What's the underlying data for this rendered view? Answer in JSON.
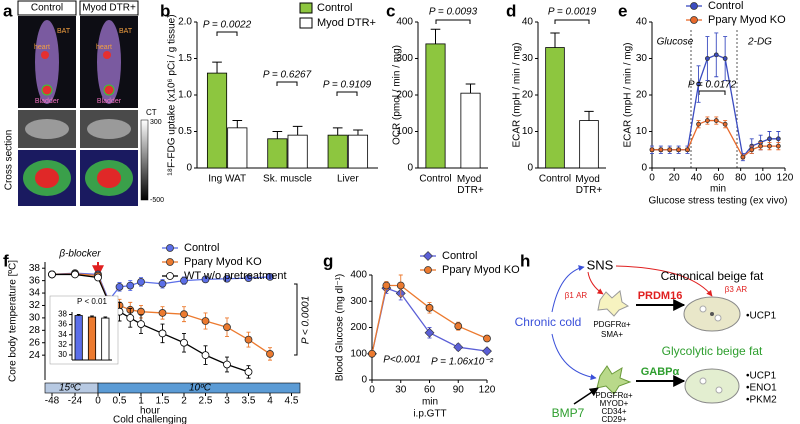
{
  "image_panel": {
    "panel": "a",
    "columns": [
      "Control",
      "Myod DTR+"
    ],
    "labels": {
      "heart": "heart",
      "bat": "BAT",
      "bladder": "Bladder"
    },
    "colorbar_title": "CT",
    "colorbar_ticks": [
      300,
      -500
    ],
    "row_label": "Cross section"
  },
  "chart_data": [
    {
      "type": "bar",
      "panel": "b",
      "y_label": "¹⁸F-FDG uptake (x10⁶ pCi / g tissue)",
      "categories": [
        "Ing WAT",
        "Sk. muscle",
        "Liver"
      ],
      "series": [
        {
          "name": "Control",
          "color": "#8dc63f",
          "values": [
            1.3,
            0.4,
            0.45
          ],
          "errors": [
            0.15,
            0.1,
            0.1
          ]
        },
        {
          "name": "Myod DTR+",
          "color": "#ffffff",
          "values": [
            0.55,
            0.45,
            0.45
          ],
          "errors": [
            0.1,
            0.12,
            0.07
          ]
        }
      ],
      "ylim": [
        0,
        2
      ],
      "yticks": [
        0,
        0.5,
        {
          "value": 1,
          "label": "1.0"
        },
        1.5,
        {
          "value": 2,
          "label": "2.0"
        }
      ],
      "annotations": [
        "P = 0.0022",
        "P = 0.6267",
        "P = 0.9109"
      ],
      "legend": "top-right"
    },
    {
      "type": "bar",
      "panel": "c",
      "y_label": "OCR (pmol / min / mg)",
      "categories": [
        "Control",
        "Myod DTR+"
      ],
      "values": [
        340,
        205
      ],
      "errors": [
        40,
        25
      ],
      "colors": [
        "#8dc63f",
        "#ffffff"
      ],
      "ylim": [
        0,
        400
      ],
      "yticks": [
        0,
        100,
        200,
        300,
        400
      ],
      "annotations": [
        "P = 0.0093"
      ]
    },
    {
      "type": "bar",
      "panel": "d",
      "y_label": "ECAR (mpH / min / mg)",
      "categories": [
        "Control",
        "Myod DTR+"
      ],
      "values": [
        33,
        13
      ],
      "errors": [
        4,
        2.5
      ],
      "colors": [
        "#8dc63f",
        "#ffffff"
      ],
      "ylim": [
        0,
        40
      ],
      "yticks": [
        0,
        10,
        20,
        30,
        40
      ],
      "annotations": [
        "P = 0.0019"
      ]
    },
    {
      "type": "line",
      "panel": "e",
      "y_label": "ECAR (mpH / min / mg)",
      "x_label": "min",
      "subtitle": "Glucose stress testing (ex vivo)",
      "x": [
        0,
        8,
        16,
        24,
        32,
        42,
        50,
        58,
        66,
        82,
        90,
        98,
        106,
        114
      ],
      "series": [
        {
          "name": "Control",
          "color": "#3b4cc0",
          "marker": "circle",
          "values": [
            5,
            5,
            5,
            5,
            5,
            23,
            30,
            31,
            30,
            3,
            6,
            7,
            8,
            8
          ],
          "errors": [
            1,
            1,
            1,
            1,
            1,
            5,
            6,
            6,
            6,
            1,
            2,
            2,
            2,
            2
          ]
        },
        {
          "name": "Pparγ Myod KO",
          "color": "#e8692b",
          "marker": "circle",
          "values": [
            5,
            5,
            5,
            5,
            5,
            12,
            13,
            13,
            12,
            3,
            5,
            6,
            6,
            6
          ],
          "errors": [
            0.5,
            0.5,
            0.5,
            0.5,
            0.5,
            1,
            1,
            1,
            1,
            0.5,
            1,
            1,
            1,
            1
          ]
        }
      ],
      "xlim": [
        0,
        120
      ],
      "xticks": [
        0,
        20,
        40,
        60,
        80,
        100,
        120
      ],
      "ylim": [
        0,
        40
      ],
      "yticks": [
        0,
        10,
        20,
        30,
        40
      ],
      "annotations": [
        "Glucose",
        "2-DG",
        "P = 0.0172"
      ],
      "legend": "top"
    },
    {
      "type": "line",
      "panel": "f",
      "y_label": "Core body temperature [ºC]",
      "x_label": "hour",
      "subtitle": "Cold challenging",
      "x": [
        -48,
        -24,
        0,
        0.25,
        0.5,
        0.75,
        1,
        1.5,
        2,
        2.5,
        3,
        3.5,
        4
      ],
      "series": [
        {
          "name": "Control",
          "color": "#5b6ee8",
          "marker": "circle",
          "values": [
            37,
            37.2,
            37,
            32.8,
            35,
            35.2,
            35.8,
            35.5,
            36,
            36.2,
            36.3,
            36.4,
            36.6
          ],
          "errors": [
            0.3,
            0.3,
            0.3,
            0.5,
            0.7,
            0.8,
            0.7,
            0.7,
            0.6,
            0.5,
            0.4,
            0.4,
            0.3
          ]
        },
        {
          "name": "Pparγ Myod KO",
          "color": "#ec7a2f",
          "marker": "circle",
          "values": [
            37,
            37.1,
            36.8,
            32.5,
            32,
            31.3,
            31,
            30.8,
            30.6,
            29.5,
            28.5,
            26.5,
            24.2
          ],
          "errors": [
            0.3,
            0.3,
            0.3,
            1,
            1,
            1.2,
            1,
            1,
            1.2,
            1.3,
            1.5,
            1.2,
            1
          ]
        },
        {
          "name": "WT w/o pretreatment",
          "color": "#ffffff",
          "marker": "circle",
          "values": [
            37,
            37,
            36.5,
            32.5,
            31,
            30,
            29,
            27.5,
            26,
            24,
            22.5,
            21.3,
            null
          ],
          "errors": [
            0.3,
            0.3,
            0.3,
            1,
            1.5,
            1.5,
            1.5,
            1.5,
            1.5,
            1.5,
            1.2,
            1,
            null
          ]
        }
      ],
      "xlim": [
        -48,
        4.5
      ],
      "xticks": [
        -48,
        -24,
        0,
        0.5,
        1,
        1.5,
        2,
        2.5,
        3,
        3.5,
        4,
        4.5
      ],
      "ylim": [
        20,
        39
      ],
      "yticks": [
        24,
        26,
        28,
        30,
        32,
        34,
        36,
        38
      ],
      "annotations": [
        "β-blocker",
        "P < 0.0001",
        "15ºC",
        "10ºC"
      ],
      "legend": "top-right"
    },
    {
      "type": "bar",
      "values": [
        37.8,
        37.5,
        37.3
      ],
      "errors": [
        0.2,
        0.2,
        0.2
      ],
      "colors": [
        "#5b6ee8",
        "#ec7a2f",
        "#ffffff"
      ],
      "ylim": [
        29,
        38.5
      ],
      "yticks": [
        30,
        32,
        34,
        36,
        38
      ],
      "annotations": [
        "P < 0.01"
      ]
    },
    {
      "type": "line",
      "panel": "g",
      "y_label": "Blood Glucose (mg dl⁻¹)",
      "x_label": "min",
      "subtitle": "i.p.GTT",
      "x": [
        0,
        15,
        30,
        60,
        90,
        120
      ],
      "series": [
        {
          "name": "Control",
          "color": "#5b5fd6",
          "marker": "diamond",
          "values": [
            100,
            350,
            330,
            180,
            125,
            110
          ],
          "errors": [
            8,
            20,
            25,
            20,
            12,
            8
          ]
        },
        {
          "name": "Pparγ Myod KO",
          "color": "#ec7a2f",
          "marker": "circle",
          "values": [
            100,
            360,
            360,
            275,
            205,
            158
          ],
          "errors": [
            8,
            15,
            40,
            20,
            15,
            8
          ]
        }
      ],
      "xlim": [
        0,
        120
      ],
      "xticks": [
        0,
        30,
        60,
        90,
        120
      ],
      "ylim": [
        0,
        400
      ],
      "yticks": [
        0,
        100,
        200,
        300,
        400
      ],
      "annotations": [
        "P = 1.06x10⁻²",
        "P<0.001"
      ],
      "legend": "top"
    }
  ],
  "diagram": {
    "panel": "h",
    "sns": "SNS",
    "canonical": "Canonical beige fat",
    "glycolytic": "Glycolytic beige fat",
    "chronic_cold": "Chronic cold",
    "bmp7": "BMP7",
    "beta1": "β1 AR",
    "beta3": "β3 AR",
    "prdm16": "PRDM16",
    "gabpa": "GABPα",
    "progenitor_1": [
      "PDGFRα+",
      "SMA+"
    ],
    "progenitor_2": [
      "PDGFRα+",
      "MYOD+",
      "CD34+",
      "CD29+"
    ],
    "canonical_markers": [
      "•UCP1"
    ],
    "glycolytic_markers": [
      "•UCP1",
      "•ENO1",
      "•PKM2"
    ]
  }
}
